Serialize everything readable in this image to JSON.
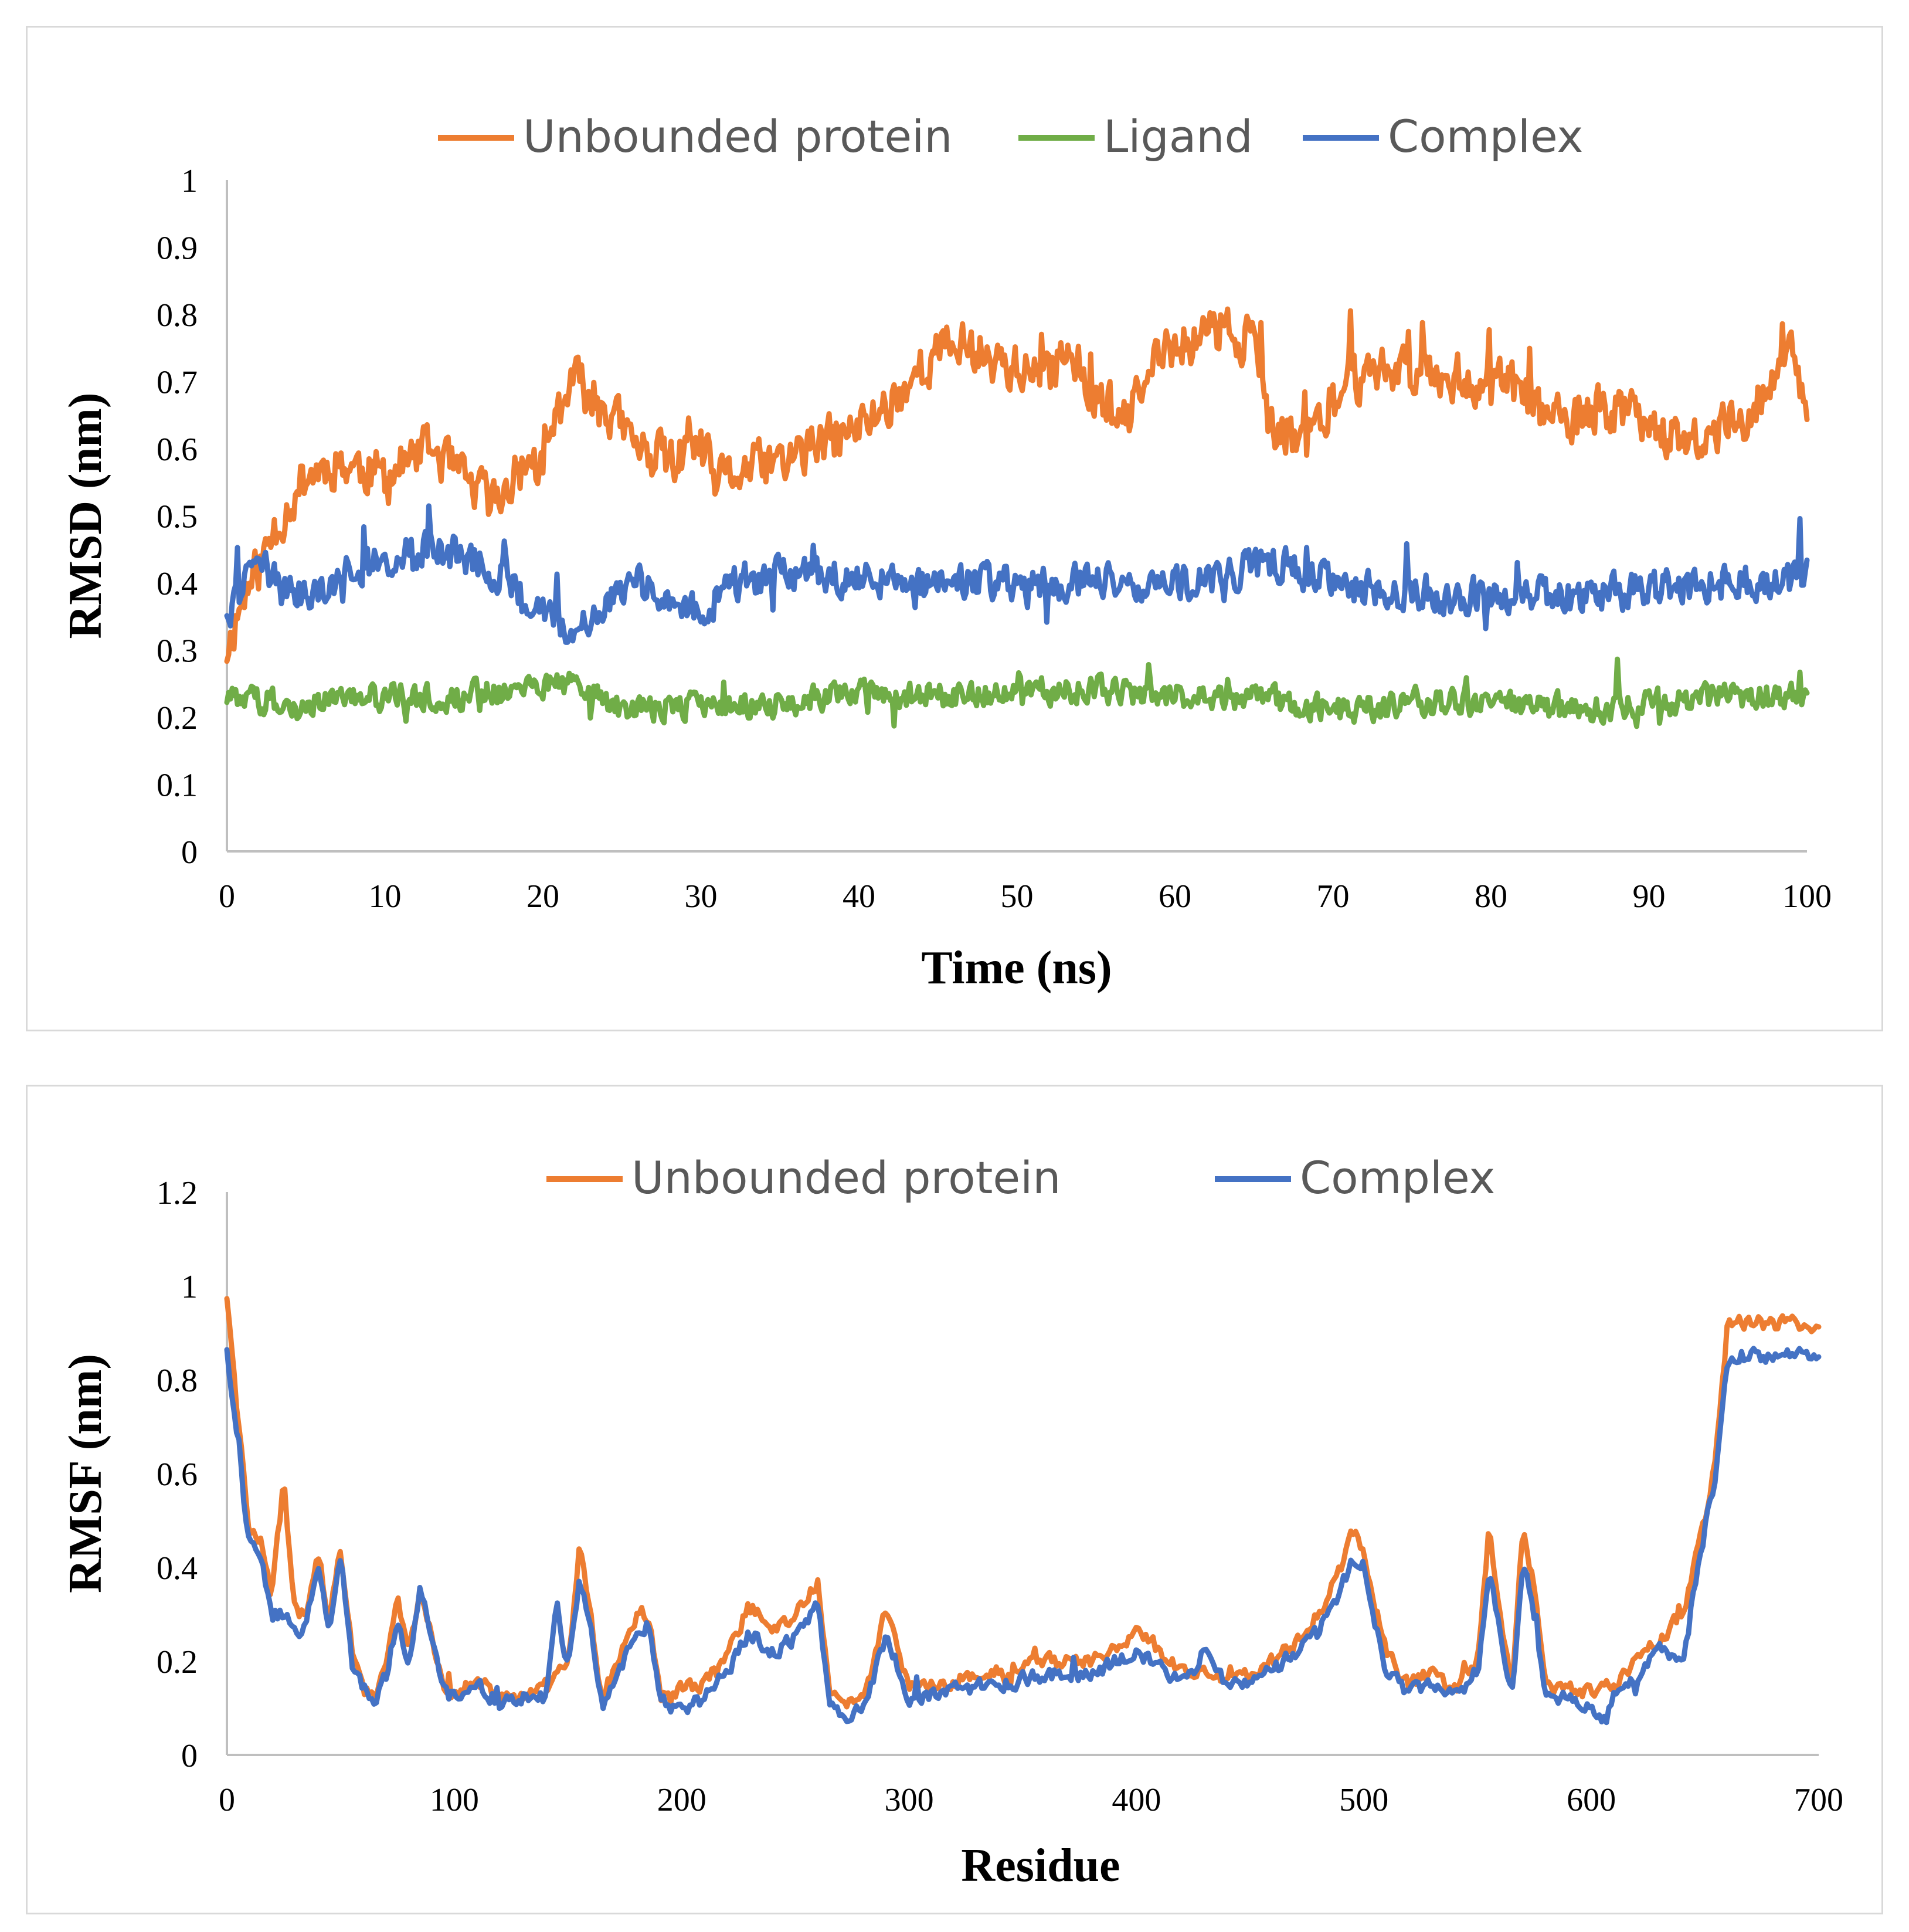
{
  "chart_data": [
    {
      "type": "line",
      "title": "",
      "xlabel": "Time (ns)",
      "ylabel": "RMSD (nm)",
      "xlim": [
        0,
        100
      ],
      "ylim": [
        0,
        1
      ],
      "xticks": [
        "0",
        "10",
        "20",
        "30",
        "40",
        "50",
        "60",
        "70",
        "80",
        "90",
        "100"
      ],
      "yticks": [
        "0",
        "0.1",
        "0.2",
        "0.3",
        "0.4",
        "0.5",
        "0.6",
        "0.7",
        "0.8",
        "0.9",
        "1"
      ],
      "legend_position": "top",
      "grid": false,
      "series": [
        {
          "name": "Unbounded protein",
          "color": "#ED7D31",
          "noise": 0.05,
          "points": [
            [
              0,
              0.3
            ],
            [
              1,
              0.38
            ],
            [
              2,
              0.42
            ],
            [
              3,
              0.48
            ],
            [
              5,
              0.56
            ],
            [
              7,
              0.58
            ],
            [
              10,
              0.56
            ],
            [
              13,
              0.6
            ],
            [
              15,
              0.55
            ],
            [
              17,
              0.52
            ],
            [
              19,
              0.58
            ],
            [
              20,
              0.57
            ],
            [
              21,
              0.66
            ],
            [
              22,
              0.7
            ],
            [
              24,
              0.66
            ],
            [
              26,
              0.6
            ],
            [
              28,
              0.58
            ],
            [
              30,
              0.6
            ],
            [
              31,
              0.55
            ],
            [
              33,
              0.57
            ],
            [
              35,
              0.58
            ],
            [
              37,
              0.6
            ],
            [
              40,
              0.63
            ],
            [
              42,
              0.67
            ],
            [
              44,
              0.72
            ],
            [
              46,
              0.76
            ],
            [
              48,
              0.74
            ],
            [
              50,
              0.72
            ],
            [
              52,
              0.7
            ],
            [
              53,
              0.76
            ],
            [
              55,
              0.68
            ],
            [
              57,
              0.64
            ],
            [
              59,
              0.74
            ],
            [
              61,
              0.76
            ],
            [
              63,
              0.78
            ],
            [
              65,
              0.76
            ],
            [
              66,
              0.62
            ],
            [
              68,
              0.62
            ],
            [
              70,
              0.66
            ],
            [
              71,
              0.7
            ],
            [
              73,
              0.72
            ],
            [
              76,
              0.72
            ],
            [
              79,
              0.7
            ],
            [
              81,
              0.7
            ],
            [
              83,
              0.66
            ],
            [
              85,
              0.63
            ],
            [
              87,
              0.66
            ],
            [
              90,
              0.65
            ],
            [
              92,
              0.6
            ],
            [
              94,
              0.62
            ],
            [
              96,
              0.65
            ],
            [
              98,
              0.7
            ],
            [
              99,
              0.75
            ],
            [
              100,
              0.66
            ]
          ]
        },
        {
          "name": "Ligand",
          "color": "#70AD47",
          "noise": 0.028,
          "points": [
            [
              0,
              0.23
            ],
            [
              5,
              0.22
            ],
            [
              10,
              0.23
            ],
            [
              15,
              0.23
            ],
            [
              20,
              0.25
            ],
            [
              22,
              0.25
            ],
            [
              25,
              0.21
            ],
            [
              30,
              0.22
            ],
            [
              35,
              0.22
            ],
            [
              40,
              0.24
            ],
            [
              45,
              0.23
            ],
            [
              50,
              0.24
            ],
            [
              55,
              0.24
            ],
            [
              60,
              0.23
            ],
            [
              65,
              0.23
            ],
            [
              70,
              0.21
            ],
            [
              75,
              0.22
            ],
            [
              80,
              0.22
            ],
            [
              85,
              0.21
            ],
            [
              90,
              0.22
            ],
            [
              95,
              0.23
            ],
            [
              100,
              0.23
            ]
          ]
        },
        {
          "name": "Complex",
          "color": "#4472C4",
          "noise": 0.038,
          "points": [
            [
              0,
              0.36
            ],
            [
              2,
              0.42
            ],
            [
              5,
              0.38
            ],
            [
              8,
              0.42
            ],
            [
              10,
              0.44
            ],
            [
              13,
              0.45
            ],
            [
              15,
              0.44
            ],
            [
              18,
              0.4
            ],
            [
              20,
              0.36
            ],
            [
              22,
              0.33
            ],
            [
              24,
              0.38
            ],
            [
              26,
              0.4
            ],
            [
              28,
              0.38
            ],
            [
              30,
              0.35
            ],
            [
              32,
              0.4
            ],
            [
              35,
              0.41
            ],
            [
              38,
              0.41
            ],
            [
              40,
              0.41
            ],
            [
              45,
              0.4
            ],
            [
              50,
              0.4
            ],
            [
              55,
              0.4
            ],
            [
              60,
              0.4
            ],
            [
              64,
              0.42
            ],
            [
              66,
              0.43
            ],
            [
              68,
              0.42
            ],
            [
              70,
              0.4
            ],
            [
              75,
              0.38
            ],
            [
              80,
              0.38
            ],
            [
              85,
              0.38
            ],
            [
              90,
              0.39
            ],
            [
              95,
              0.4
            ],
            [
              100,
              0.41
            ]
          ]
        }
      ]
    },
    {
      "type": "line",
      "title": "",
      "xlabel": "Residue",
      "ylabel": "RMSF (nm)",
      "xlim": [
        0,
        700
      ],
      "ylim": [
        0,
        1.2
      ],
      "xticks": [
        "0",
        "100",
        "200",
        "300",
        "400",
        "500",
        "600",
        "700"
      ],
      "yticks": [
        "0",
        "0.2",
        "0.4",
        "0.6",
        "0.8",
        "1",
        "1.2"
      ],
      "legend_position": "top",
      "grid": false,
      "series": [
        {
          "name": "Unbounded protein",
          "color": "#ED7D31",
          "noise": 0.022,
          "points": [
            [
              0,
              0.98
            ],
            [
              5,
              0.7
            ],
            [
              10,
              0.48
            ],
            [
              15,
              0.45
            ],
            [
              20,
              0.35
            ],
            [
              25,
              0.58
            ],
            [
              30,
              0.3
            ],
            [
              35,
              0.3
            ],
            [
              40,
              0.44
            ],
            [
              45,
              0.28
            ],
            [
              50,
              0.44
            ],
            [
              55,
              0.22
            ],
            [
              60,
              0.15
            ],
            [
              65,
              0.13
            ],
            [
              70,
              0.18
            ],
            [
              75,
              0.33
            ],
            [
              80,
              0.22
            ],
            [
              85,
              0.35
            ],
            [
              90,
              0.25
            ],
            [
              95,
              0.15
            ],
            [
              100,
              0.13
            ],
            [
              110,
              0.16
            ],
            [
              120,
              0.12
            ],
            [
              130,
              0.12
            ],
            [
              140,
              0.14
            ],
            [
              150,
              0.2
            ],
            [
              155,
              0.44
            ],
            [
              160,
              0.3
            ],
            [
              165,
              0.12
            ],
            [
              170,
              0.18
            ],
            [
              180,
              0.3
            ],
            [
              185,
              0.3
            ],
            [
              190,
              0.15
            ],
            [
              195,
              0.12
            ],
            [
              200,
              0.14
            ],
            [
              210,
              0.15
            ],
            [
              220,
              0.22
            ],
            [
              230,
              0.32
            ],
            [
              240,
              0.26
            ],
            [
              250,
              0.3
            ],
            [
              260,
              0.37
            ],
            [
              265,
              0.14
            ],
            [
              270,
              0.1
            ],
            [
              280,
              0.12
            ],
            [
              290,
              0.32
            ],
            [
              300,
              0.14
            ],
            [
              320,
              0.16
            ],
            [
              340,
              0.18
            ],
            [
              360,
              0.2
            ],
            [
              380,
              0.2
            ],
            [
              400,
              0.26
            ],
            [
              420,
              0.18
            ],
            [
              440,
              0.16
            ],
            [
              460,
              0.2
            ],
            [
              470,
              0.24
            ],
            [
              480,
              0.3
            ],
            [
              490,
              0.4
            ],
            [
              495,
              0.48
            ],
            [
              500,
              0.44
            ],
            [
              505,
              0.32
            ],
            [
              510,
              0.22
            ],
            [
              520,
              0.15
            ],
            [
              530,
              0.18
            ],
            [
              540,
              0.14
            ],
            [
              550,
              0.2
            ],
            [
              555,
              0.48
            ],
            [
              560,
              0.3
            ],
            [
              565,
              0.14
            ],
            [
              570,
              0.5
            ],
            [
              575,
              0.35
            ],
            [
              580,
              0.14
            ],
            [
              590,
              0.14
            ],
            [
              600,
              0.13
            ],
            [
              610,
              0.15
            ],
            [
              620,
              0.2
            ],
            [
              630,
              0.25
            ],
            [
              640,
              0.3
            ],
            [
              650,
              0.5
            ],
            [
              655,
              0.65
            ],
            [
              660,
              0.92
            ]
          ]
        },
        {
          "name": "Complex",
          "color": "#4472C4",
          "noise": 0.022,
          "points": [
            [
              0,
              0.87
            ],
            [
              5,
              0.65
            ],
            [
              10,
              0.45
            ],
            [
              15,
              0.42
            ],
            [
              20,
              0.3
            ],
            [
              25,
              0.3
            ],
            [
              30,
              0.26
            ],
            [
              35,
              0.28
            ],
            [
              40,
              0.42
            ],
            [
              45,
              0.26
            ],
            [
              50,
              0.42
            ],
            [
              55,
              0.2
            ],
            [
              60,
              0.14
            ],
            [
              65,
              0.12
            ],
            [
              70,
              0.17
            ],
            [
              75,
              0.29
            ],
            [
              80,
              0.2
            ],
            [
              85,
              0.36
            ],
            [
              90,
              0.24
            ],
            [
              95,
              0.14
            ],
            [
              100,
              0.12
            ],
            [
              110,
              0.15
            ],
            [
              120,
              0.11
            ],
            [
              130,
              0.12
            ],
            [
              140,
              0.12
            ],
            [
              145,
              0.32
            ],
            [
              150,
              0.18
            ],
            [
              155,
              0.38
            ],
            [
              160,
              0.28
            ],
            [
              165,
              0.1
            ],
            [
              170,
              0.16
            ],
            [
              180,
              0.26
            ],
            [
              185,
              0.28
            ],
            [
              190,
              0.14
            ],
            [
              195,
              0.1
            ],
            [
              200,
              0.1
            ],
            [
              210,
              0.12
            ],
            [
              220,
              0.18
            ],
            [
              230,
              0.26
            ],
            [
              240,
              0.22
            ],
            [
              250,
              0.25
            ],
            [
              260,
              0.32
            ],
            [
              265,
              0.12
            ],
            [
              270,
              0.08
            ],
            [
              280,
              0.1
            ],
            [
              290,
              0.26
            ],
            [
              300,
              0.12
            ],
            [
              320,
              0.14
            ],
            [
              340,
              0.15
            ],
            [
              360,
              0.17
            ],
            [
              380,
              0.17
            ],
            [
              400,
              0.22
            ],
            [
              420,
              0.15
            ],
            [
              430,
              0.22
            ],
            [
              440,
              0.14
            ],
            [
              460,
              0.18
            ],
            [
              470,
              0.22
            ],
            [
              480,
              0.26
            ],
            [
              490,
              0.35
            ],
            [
              495,
              0.42
            ],
            [
              500,
              0.4
            ],
            [
              505,
              0.28
            ],
            [
              510,
              0.18
            ],
            [
              520,
              0.13
            ],
            [
              530,
              0.16
            ],
            [
              540,
              0.12
            ],
            [
              550,
              0.17
            ],
            [
              555,
              0.38
            ],
            [
              560,
              0.26
            ],
            [
              565,
              0.12
            ],
            [
              570,
              0.42
            ],
            [
              575,
              0.3
            ],
            [
              580,
              0.12
            ],
            [
              590,
              0.12
            ],
            [
              600,
              0.1
            ],
            [
              605,
              0.06
            ],
            [
              610,
              0.12
            ],
            [
              620,
              0.17
            ],
            [
              630,
              0.22
            ],
            [
              640,
              0.2
            ],
            [
              650,
              0.48
            ],
            [
              655,
              0.6
            ],
            [
              660,
              0.85
            ]
          ]
        }
      ]
    }
  ]
}
